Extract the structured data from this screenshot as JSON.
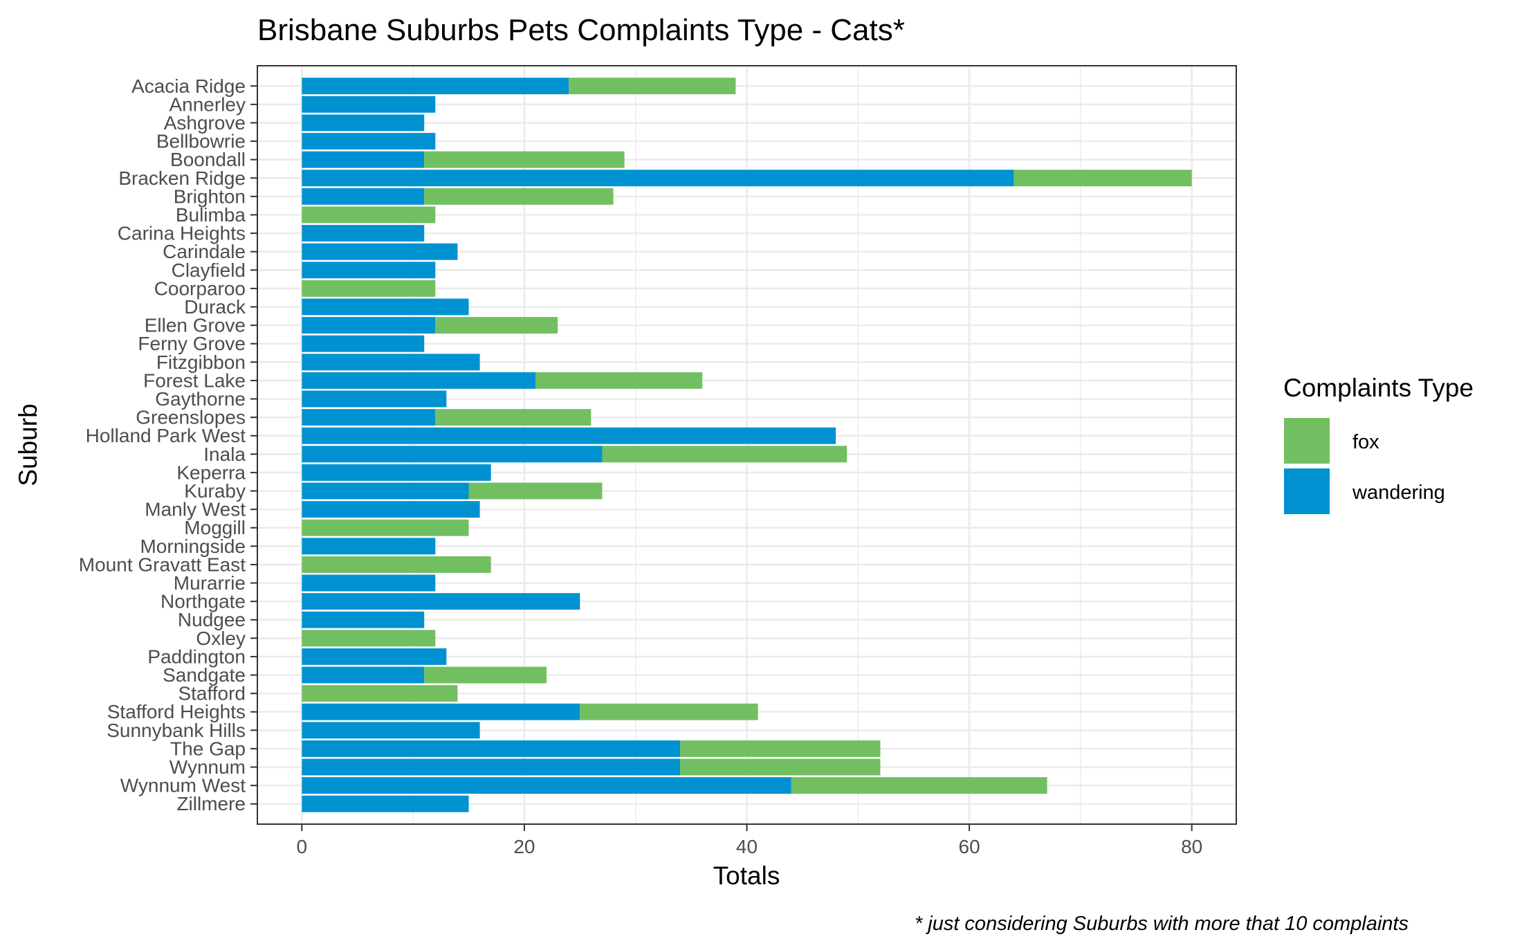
{
  "chart_data": {
    "type": "bar",
    "orientation": "horizontal",
    "stacked": true,
    "title": "Brisbane Suburbs Pets Complaints Type - Cats*",
    "xlabel": "Totals",
    "ylabel": "Suburb",
    "xlim": [
      -4,
      84
    ],
    "xticks": [
      0,
      20,
      40,
      60,
      80
    ],
    "grid": true,
    "legend": {
      "title": "Complaints Type",
      "position": "right",
      "entries": [
        "fox",
        "wandering"
      ]
    },
    "caption": "* just considering Suburbs with more that 10 complaints",
    "colors": {
      "wandering": "#0092D0",
      "fox": "#72BF61"
    },
    "categories": [
      "Acacia Ridge",
      "Annerley",
      "Ashgrove",
      "Bellbowrie",
      "Boondall",
      "Bracken Ridge",
      "Brighton",
      "Bulimba",
      "Carina Heights",
      "Carindale",
      "Clayfield",
      "Coorparoo",
      "Durack",
      "Ellen Grove",
      "Ferny Grove",
      "Fitzgibbon",
      "Forest Lake",
      "Gaythorne",
      "Greenslopes",
      "Holland Park West",
      "Inala",
      "Keperra",
      "Kuraby",
      "Manly West",
      "Moggill",
      "Morningside",
      "Mount Gravatt East",
      "Murarrie",
      "Northgate",
      "Nudgee",
      "Oxley",
      "Paddington",
      "Sandgate",
      "Stafford",
      "Stafford Heights",
      "Sunnybank Hills",
      "The Gap",
      "Wynnum",
      "Wynnum West",
      "Zillmere"
    ],
    "series": [
      {
        "name": "wandering",
        "values": [
          24,
          12,
          11,
          12,
          11,
          64,
          11,
          0,
          11,
          14,
          12,
          0,
          15,
          12,
          11,
          16,
          21,
          13,
          12,
          48,
          27,
          17,
          15,
          16,
          0,
          12,
          0,
          12,
          25,
          11,
          0,
          13,
          11,
          0,
          25,
          16,
          34,
          34,
          44,
          15
        ]
      },
      {
        "name": "fox",
        "values": [
          15,
          0,
          0,
          0,
          18,
          16,
          17,
          12,
          0,
          0,
          0,
          12,
          0,
          11,
          0,
          0,
          15,
          0,
          14,
          0,
          22,
          0,
          12,
          0,
          15,
          0,
          17,
          0,
          0,
          0,
          12,
          0,
          11,
          14,
          16,
          0,
          18,
          18,
          23,
          0
        ]
      }
    ]
  }
}
